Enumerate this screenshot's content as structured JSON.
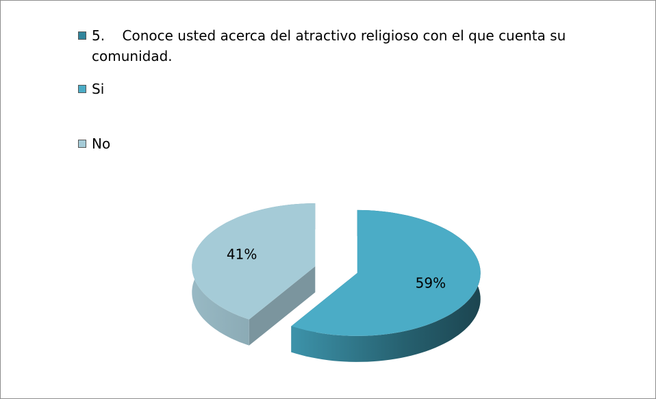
{
  "chart_data": {
    "type": "pie",
    "series_name": "5.    Conoce usted acerca del atractivo religioso con el que cuenta su comunidad.",
    "series_color": "#31859c",
    "categories": [
      "Si",
      "No"
    ],
    "values": [
      59,
      41
    ],
    "value_labels": [
      "59%",
      "41%"
    ],
    "colors": [
      "#4bacc6",
      "#a5cbd7"
    ],
    "three_d": true,
    "exploded": true,
    "legend": "top-left"
  }
}
